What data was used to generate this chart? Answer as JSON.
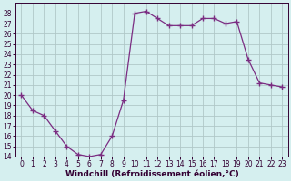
{
  "x": [
    0,
    1,
    2,
    3,
    4,
    5,
    6,
    7,
    8,
    9,
    10,
    11,
    12,
    13,
    14,
    15,
    16,
    17,
    18,
    19,
    20,
    21,
    22,
    23
  ],
  "y": [
    20,
    18.5,
    18,
    16.5,
    15,
    14.2,
    14,
    14.2,
    16,
    19.5,
    28,
    28.2,
    27.5,
    26.8,
    26.8,
    26.8,
    27.5,
    27.5,
    27,
    27.2,
    23.5,
    21.2,
    21.0,
    20.8
  ],
  "line_color": "#7b2d82",
  "marker": "+",
  "marker_size": 4,
  "marker_lw": 1.0,
  "bg_color": "#d5efef",
  "grid_color": "#b0c8c8",
  "xlabel": "Windchill (Refroidissement éolien,°C)",
  "xlabel_fontsize": 6.5,
  "ylim": [
    14,
    29
  ],
  "xlim": [
    -0.5,
    23.5
  ],
  "yticks": [
    14,
    15,
    16,
    17,
    18,
    19,
    20,
    21,
    22,
    23,
    24,
    25,
    26,
    27,
    28
  ],
  "xticks": [
    0,
    1,
    2,
    3,
    4,
    5,
    6,
    7,
    8,
    9,
    10,
    11,
    12,
    13,
    14,
    15,
    16,
    17,
    18,
    19,
    20,
    21,
    22,
    23
  ],
  "tick_fontsize": 5.5,
  "label_color": "#330033",
  "spine_color": "#330033",
  "linewidth": 0.9
}
